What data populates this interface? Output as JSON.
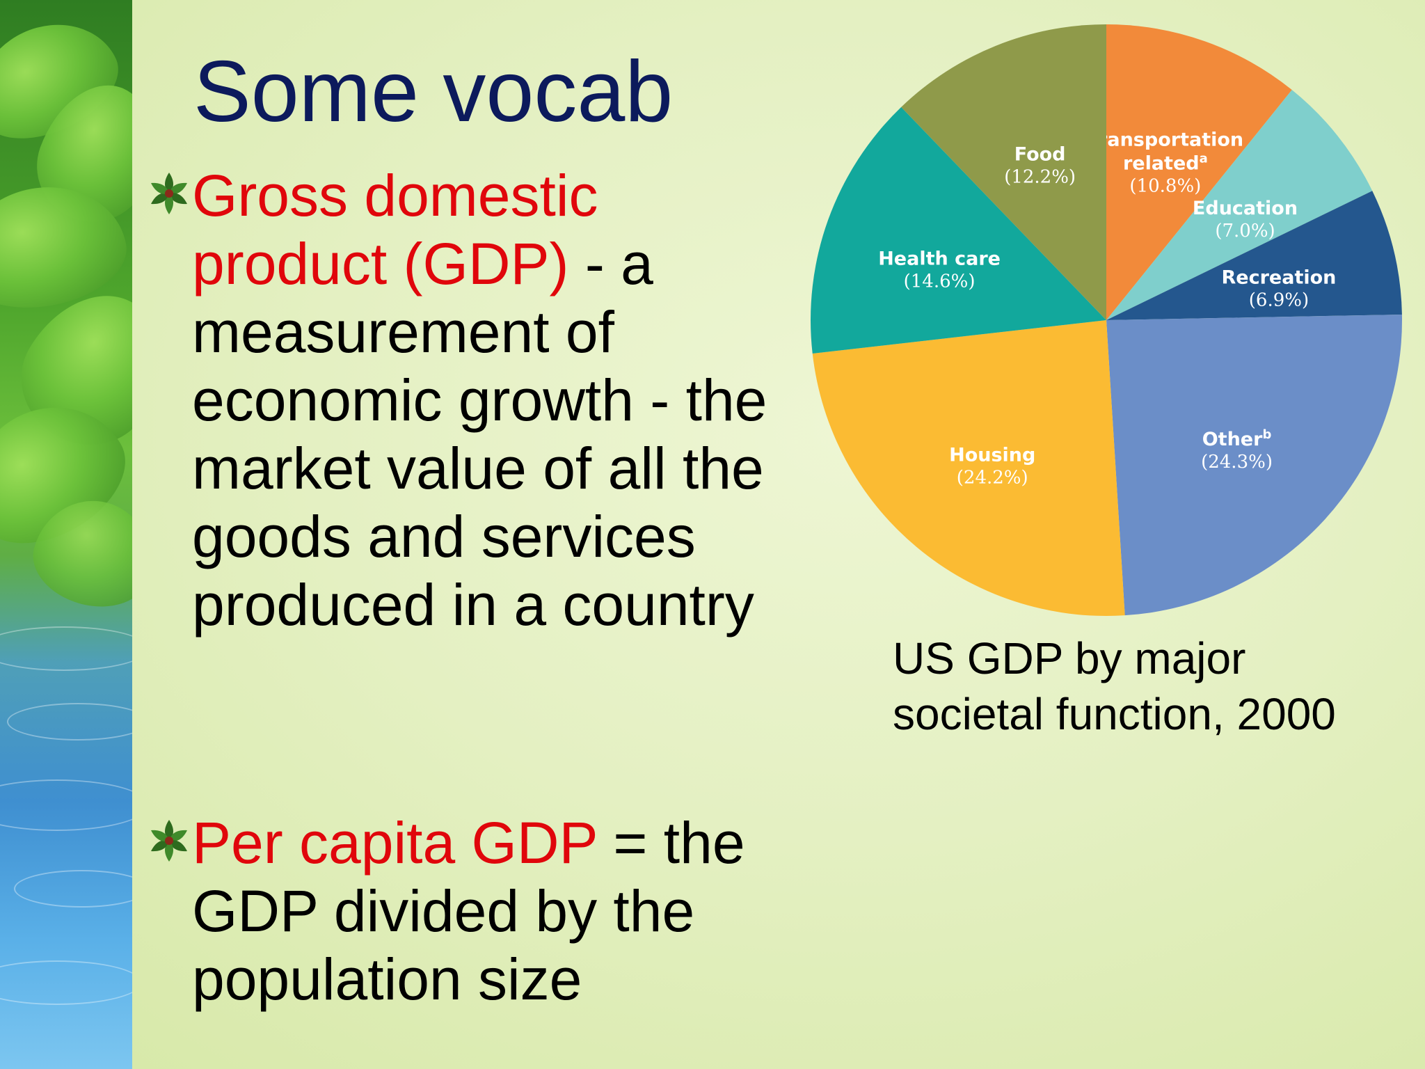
{
  "slide": {
    "title": "Some vocab"
  },
  "bullets": [
    {
      "term": "Gross domestic product (GDP)",
      "definition": " - a measurement of economic growth - the market value of all the goods and services produced in a country"
    },
    {
      "term": "Per capita GDP",
      "definition": " = the GDP divided by the population size"
    }
  ],
  "caption": {
    "line1": "US GDP by major",
    "line2": "societal function, 2000"
  },
  "chart_data": {
    "type": "pie",
    "title": "",
    "slices": [
      {
        "label": "Transportation related",
        "superscript": "a",
        "value": 10.8,
        "value_label": "(10.8%)",
        "color": "#f28a3a"
      },
      {
        "label": "Education",
        "superscript": "",
        "value": 7.0,
        "value_label": "(7.0%)",
        "color": "#7fcfcc"
      },
      {
        "label": "Recreation",
        "superscript": "",
        "value": 6.9,
        "value_label": "(6.9%)",
        "color": "#24578e"
      },
      {
        "label": "Other",
        "superscript": "b",
        "value": 24.3,
        "value_label": "(24.3%)",
        "color": "#6b8ec8"
      },
      {
        "label": "Housing",
        "superscript": "",
        "value": 24.2,
        "value_label": "(24.2%)",
        "color": "#fbbb33"
      },
      {
        "label": "Health care",
        "superscript": "",
        "value": 14.6,
        "value_label": "(14.6%)",
        "color": "#12a89c"
      },
      {
        "label": "Food",
        "superscript": "",
        "value": 12.2,
        "value_label": "(12.2%)",
        "color": "#8f9a4a"
      }
    ]
  }
}
